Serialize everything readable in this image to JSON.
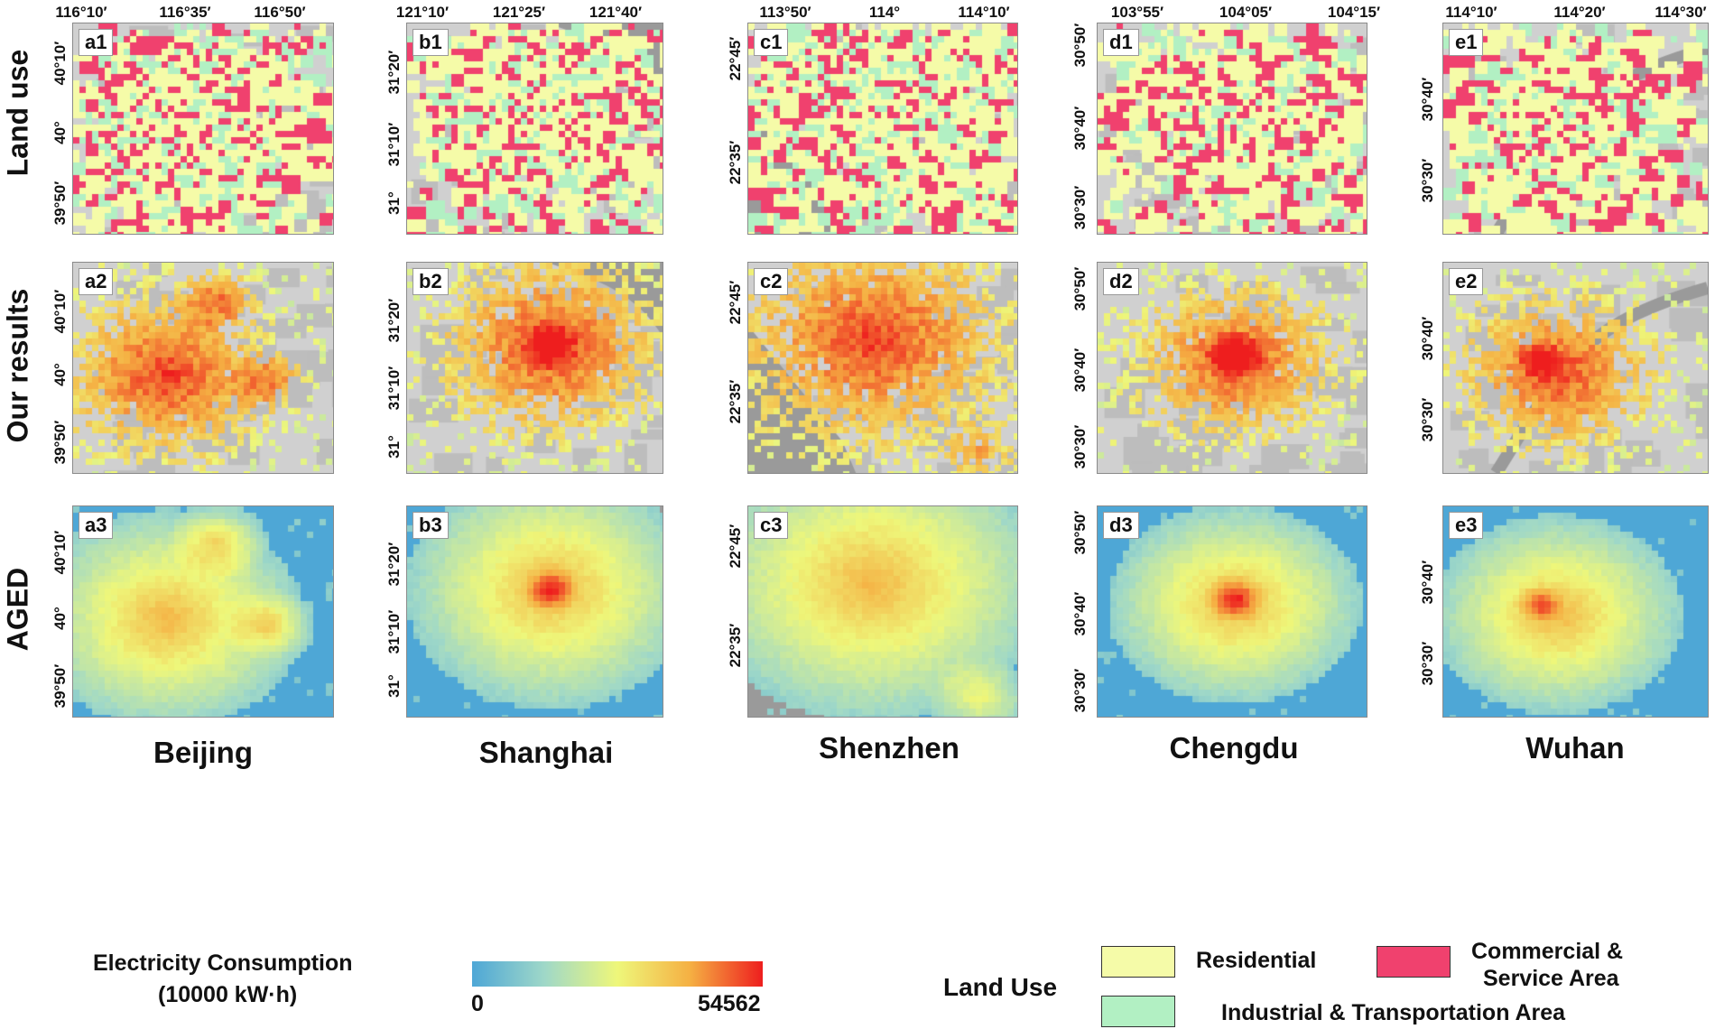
{
  "row_titles": [
    "Land use",
    "Our results",
    "AGED"
  ],
  "cities": [
    "Beijing",
    "Shanghai",
    "Shenzhen",
    "Chengdu",
    "Wuhan"
  ],
  "panel_labels": {
    "a": [
      "a1",
      "a2",
      "a3"
    ],
    "b": [
      "b1",
      "b2",
      "b3"
    ],
    "c": [
      "c1",
      "c2",
      "c3"
    ],
    "d": [
      "d1",
      "d2",
      "d3"
    ],
    "e": [
      "e1",
      "e2",
      "e3"
    ]
  },
  "top_ticks": {
    "a": [
      "116°10′",
      "116°35′",
      "116°50′"
    ],
    "b": [
      "121°10′",
      "121°25′",
      "121°40′"
    ],
    "c": [
      "113°50′",
      "114°",
      "114°10′"
    ],
    "d": [
      "103°55′",
      "104°05′",
      "104°15′"
    ],
    "e": [
      "114°10′",
      "114°20′",
      "114°30′"
    ]
  },
  "left_ticks": {
    "a": [
      "40°10′",
      "40°",
      "39°50′"
    ],
    "b": [
      "31°20′",
      "31°10′",
      "31°"
    ],
    "c": [
      "22°45′",
      "22°35′"
    ],
    "d": [
      "30°50′",
      "30°40′",
      "30°30′"
    ],
    "e": [
      "30°40′",
      "30°30′"
    ]
  },
  "legend": {
    "electricity_title_1": "Electricity Consumption",
    "electricity_title_2": "(10000 kW·h)",
    "min": "0",
    "max": "54562",
    "land_use_title": "Land Use",
    "residential": "Residential",
    "commercial_1": "Commercial &",
    "commercial_2": "Service Area",
    "industrial": "Industrial & Transportation Area"
  },
  "colors": {
    "residential": "#f5fba8",
    "commercial": "#f0416e",
    "industrial": "#b2f0c3",
    "base_gray": "#d0d0d0",
    "water": "#9a9a9a",
    "low": "#4ea7d6",
    "mid": "#eef77a",
    "high": "#ee1e1e"
  }
}
